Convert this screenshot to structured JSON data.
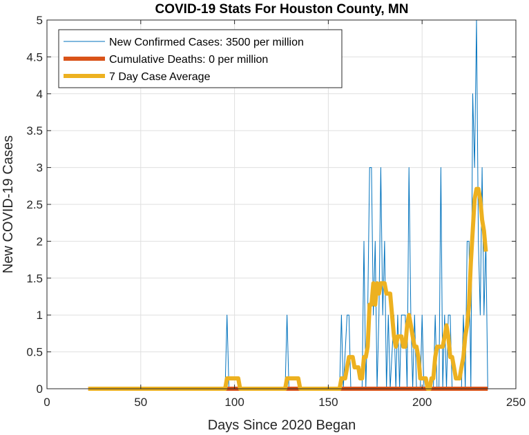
{
  "chart_data": {
    "type": "line",
    "title": "COVID-19 Stats For Houston County, MN",
    "xlabel": "Days Since 2020 Began",
    "ylabel": "New COVID-19 Cases",
    "xlim": [
      0,
      250
    ],
    "ylim": [
      0,
      5
    ],
    "xticks": [
      0,
      50,
      100,
      150,
      200,
      250
    ],
    "xtick_labels": [
      "0",
      "50",
      "100",
      "150",
      "200",
      "250"
    ],
    "yticks": [
      0,
      0.5,
      1,
      1.5,
      2,
      2.5,
      3,
      3.5,
      4,
      4.5,
      5
    ],
    "ytick_labels": [
      "0",
      "0.5",
      "1",
      "1.5",
      "2",
      "2.5",
      "3",
      "3.5",
      "4",
      "4.5",
      "5"
    ],
    "grid": true,
    "legend_position": "top-left",
    "series": [
      {
        "name": "New Confirmed Cases: 3500 per million",
        "color": "#0072bd",
        "points": [
          [
            22,
            0
          ],
          [
            95,
            0
          ],
          [
            96,
            1
          ],
          [
            97,
            0
          ],
          [
            127,
            0
          ],
          [
            128,
            1
          ],
          [
            129,
            0
          ],
          [
            156,
            0
          ],
          [
            157,
            1
          ],
          [
            158,
            0
          ],
          [
            160,
            1
          ],
          [
            161,
            1
          ],
          [
            162,
            0
          ],
          [
            168,
            0
          ],
          [
            169,
            2
          ],
          [
            170,
            0
          ],
          [
            171,
            1
          ],
          [
            172,
            3
          ],
          [
            173,
            3
          ],
          [
            174,
            1
          ],
          [
            175,
            2
          ],
          [
            176,
            0
          ],
          [
            177,
            1
          ],
          [
            178,
            3
          ],
          [
            179,
            1
          ],
          [
            180,
            2
          ],
          [
            181,
            0
          ],
          [
            182,
            1
          ],
          [
            183,
            0
          ],
          [
            185,
            1
          ],
          [
            186,
            0
          ],
          [
            187,
            1
          ],
          [
            188,
            0
          ],
          [
            189,
            1
          ],
          [
            190,
            1
          ],
          [
            191,
            1
          ],
          [
            192,
            0
          ],
          [
            193,
            3
          ],
          [
            194,
            1
          ],
          [
            195,
            0
          ],
          [
            196,
            1
          ],
          [
            197,
            0
          ],
          [
            199,
            0
          ],
          [
            200,
            1
          ],
          [
            201,
            0
          ],
          [
            206,
            0
          ],
          [
            207,
            1
          ],
          [
            208,
            0
          ],
          [
            209,
            0
          ],
          [
            210,
            3
          ],
          [
            211,
            0
          ],
          [
            212,
            1
          ],
          [
            213,
            0
          ],
          [
            214,
            1
          ],
          [
            215,
            1
          ],
          [
            216,
            0
          ],
          [
            221,
            0
          ],
          [
            222,
            1
          ],
          [
            223,
            0
          ],
          [
            224,
            2
          ],
          [
            225,
            2
          ],
          [
            226,
            0
          ],
          [
            227,
            4
          ],
          [
            228,
            3
          ],
          [
            229,
            5
          ],
          [
            230,
            2
          ],
          [
            231,
            1
          ],
          [
            232,
            3
          ],
          [
            233,
            1
          ],
          [
            234,
            2
          ],
          [
            235,
            0
          ]
        ]
      },
      {
        "name": "Cumulative Deaths: 0 per million",
        "color": "#d95319",
        "points": [
          [
            22,
            0
          ],
          [
            235,
            0
          ]
        ]
      },
      {
        "name": "7 Day Case Average",
        "color": "#edb120",
        "points": [
          [
            22,
            0
          ],
          [
            95,
            0
          ],
          [
            96,
            0.14
          ],
          [
            102,
            0.14
          ],
          [
            103,
            0
          ],
          [
            127,
            0
          ],
          [
            128,
            0.14
          ],
          [
            134,
            0.14
          ],
          [
            135,
            0
          ],
          [
            156,
            0
          ],
          [
            157,
            0.14
          ],
          [
            159,
            0.14
          ],
          [
            160,
            0.29
          ],
          [
            161,
            0.43
          ],
          [
            163,
            0.43
          ],
          [
            164,
            0.29
          ],
          [
            166,
            0.29
          ],
          [
            167,
            0.14
          ],
          [
            168,
            0.14
          ],
          [
            169,
            0.43
          ],
          [
            170,
            0.43
          ],
          [
            171,
            0.57
          ],
          [
            172,
            1.14
          ],
          [
            173,
            1.14
          ],
          [
            174,
            1.43
          ],
          [
            175,
            1.14
          ],
          [
            176,
            1.43
          ],
          [
            177,
            1.29
          ],
          [
            178,
            1.43
          ],
          [
            179,
            1.43
          ],
          [
            180,
            1.43
          ],
          [
            181,
            1.29
          ],
          [
            182,
            1.29
          ],
          [
            183,
            1.29
          ],
          [
            184,
            1.0
          ],
          [
            185,
            0.71
          ],
          [
            186,
            0.57
          ],
          [
            187,
            0.71
          ],
          [
            188,
            0.71
          ],
          [
            189,
            0.71
          ],
          [
            190,
            0.57
          ],
          [
            191,
            0.57
          ],
          [
            192,
            0.86
          ],
          [
            193,
            1.0
          ],
          [
            194,
            0.86
          ],
          [
            195,
            0.71
          ],
          [
            196,
            0.57
          ],
          [
            197,
            0.57
          ],
          [
            198,
            0.43
          ],
          [
            199,
            0.14
          ],
          [
            200,
            0.14
          ],
          [
            201,
            0.14
          ],
          [
            202,
            0.14
          ],
          [
            203,
            0.0
          ],
          [
            204,
            0.0
          ],
          [
            205,
            0.14
          ],
          [
            206,
            0.14
          ],
          [
            207,
            0.43
          ],
          [
            208,
            0.57
          ],
          [
            209,
            0.57
          ],
          [
            210,
            0.57
          ],
          [
            211,
            0.57
          ],
          [
            212,
            0.71
          ],
          [
            213,
            0.86
          ],
          [
            214,
            0.71
          ],
          [
            215,
            0.43
          ],
          [
            216,
            0.43
          ],
          [
            217,
            0.29
          ],
          [
            218,
            0.14
          ],
          [
            219,
            0.14
          ],
          [
            220,
            0.14
          ],
          [
            221,
            0.29
          ],
          [
            222,
            0.43
          ],
          [
            223,
            0.71
          ],
          [
            224,
            0.86
          ],
          [
            225,
            1.14
          ],
          [
            226,
            1.71
          ],
          [
            227,
            2.14
          ],
          [
            228,
            2.57
          ],
          [
            229,
            2.71
          ],
          [
            230,
            2.71
          ],
          [
            231,
            2.57
          ],
          [
            232,
            2.29
          ],
          [
            233,
            2.14
          ],
          [
            234,
            1.86
          ]
        ]
      }
    ]
  }
}
